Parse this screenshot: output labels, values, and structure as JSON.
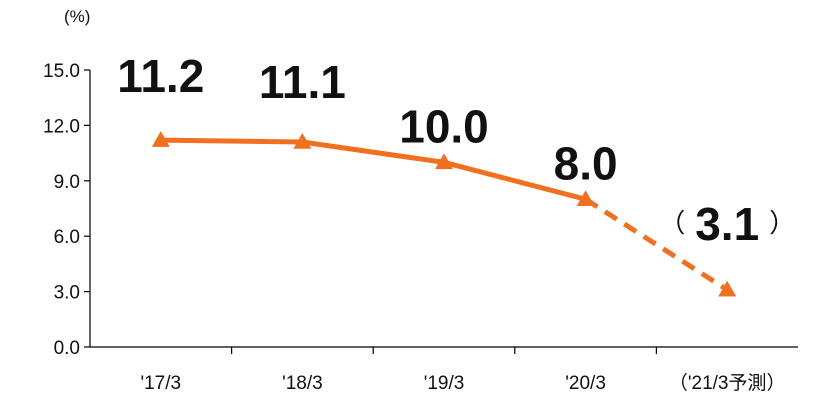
{
  "chart_data": {
    "type": "line",
    "unit_label": "(%)",
    "categories": [
      "'17/3",
      "'18/3",
      "'19/3",
      "'20/3",
      "（'21/3予測）"
    ],
    "values": [
      11.2,
      11.1,
      10.0,
      8.0,
      3.1
    ],
    "data_labels": [
      "11.2",
      "11.1",
      "10.0",
      "8.0",
      "3.1"
    ],
    "forecast_label_parens": [
      "（",
      "）"
    ],
    "forecast_from_index": 3,
    "ylim": [
      0,
      15
    ],
    "yticks": [
      "0.0",
      "3.0",
      "6.0",
      "9.0",
      "12.0",
      "15.0"
    ],
    "ytick_values": [
      0,
      3,
      6,
      9,
      12,
      15
    ],
    "marker": "triangle",
    "grid": false,
    "line_color": "#f07020",
    "title": "",
    "xlabel": "",
    "ylabel": ""
  }
}
